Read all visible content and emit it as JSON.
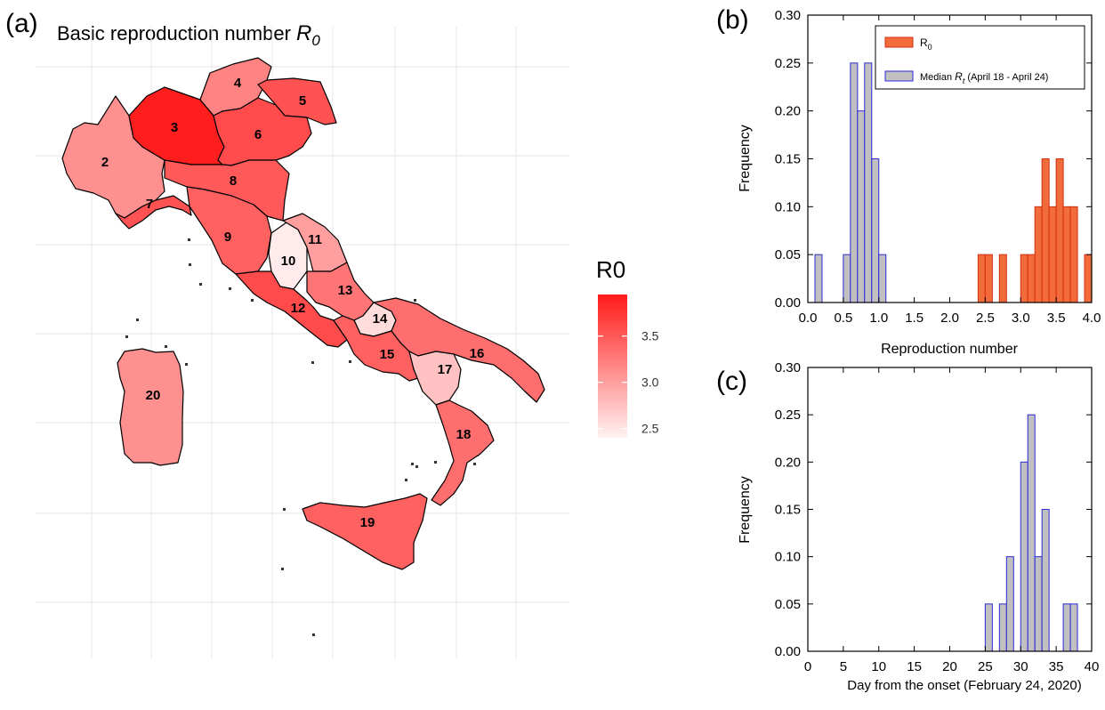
{
  "panel_a": {
    "label": "(a)",
    "title_text": "Basic reproduction number ",
    "title_symbol": "R",
    "title_sub": "0"
  },
  "panel_b": {
    "label": "(b)"
  },
  "panel_c": {
    "label": "(c)"
  },
  "colors": {
    "r0_fill": "#f26b3a",
    "r0_edge": "#d32f12",
    "rt_fill": "#c0c0c0",
    "rt_edge": "#2a2ad8",
    "map_high": "#ff1a1a",
    "map_low": "#fff2f2",
    "region_stroke": "#000000",
    "grid": "#ebebeb"
  },
  "chart_data": [
    {
      "id": "map",
      "type": "heatmap",
      "title": "Basic reproduction number R0",
      "legend": {
        "title": "R0",
        "ticks": [
          "3.5",
          "3.0",
          "2.5"
        ],
        "min": 2.4,
        "max": 3.95
      },
      "regions": [
        {
          "id": "2",
          "r0": 3.1
        },
        {
          "id": "3",
          "r0": 3.92
        },
        {
          "id": "4",
          "r0": 3.2
        },
        {
          "id": "5",
          "r0": 3.55
        },
        {
          "id": "6",
          "r0": 3.6
        },
        {
          "id": "7",
          "r0": 3.55
        },
        {
          "id": "8",
          "r0": 3.5
        },
        {
          "id": "9",
          "r0": 3.45
        },
        {
          "id": "10",
          "r0": 2.45
        },
        {
          "id": "11",
          "r0": 3.0
        },
        {
          "id": "12",
          "r0": 3.6
        },
        {
          "id": "13",
          "r0": 3.3
        },
        {
          "id": "14",
          "r0": 2.55
        },
        {
          "id": "15",
          "r0": 3.45
        },
        {
          "id": "16",
          "r0": 3.35
        },
        {
          "id": "17",
          "r0": 2.75
        },
        {
          "id": "18",
          "r0": 3.35
        },
        {
          "id": "19",
          "r0": 3.45
        },
        {
          "id": "20",
          "r0": 3.1
        }
      ]
    },
    {
      "id": "hist_b",
      "type": "bar",
      "xlabel": "Reproduction number",
      "ylabel": "Frequency",
      "xlim": [
        0.0,
        4.0
      ],
      "ylim": [
        0.0,
        0.3
      ],
      "xticks": [
        "0.0",
        "0.5",
        "1.0",
        "1.5",
        "2.0",
        "2.5",
        "3.0",
        "3.5",
        "4.0"
      ],
      "yticks": [
        "0.00",
        "0.05",
        "0.10",
        "0.15",
        "0.20",
        "0.25",
        "0.30"
      ],
      "bin_width": 0.1,
      "legend": {
        "position": "top-right",
        "r0_label": "R",
        "r0_sub": "0",
        "rt_label_pre": "Median ",
        "rt_symbol": "R",
        "rt_sub": "t",
        "rt_label_post": " (April 18 - April 24)"
      },
      "series": [
        {
          "name": "Median Rt (April 18 - April 24)",
          "color": "rt",
          "bins": [
            [
              0.1,
              0.05
            ],
            [
              0.5,
              0.05
            ],
            [
              0.6,
              0.25
            ],
            [
              0.7,
              0.2
            ],
            [
              0.8,
              0.25
            ],
            [
              0.9,
              0.15
            ],
            [
              1.0,
              0.05
            ]
          ]
        },
        {
          "name": "R0",
          "color": "r0",
          "bins": [
            [
              2.4,
              0.05
            ],
            [
              2.5,
              0.05
            ],
            [
              2.7,
              0.05
            ],
            [
              3.0,
              0.05
            ],
            [
              3.1,
              0.05
            ],
            [
              3.2,
              0.1
            ],
            [
              3.3,
              0.15
            ],
            [
              3.4,
              0.1
            ],
            [
              3.5,
              0.15
            ],
            [
              3.6,
              0.1
            ],
            [
              3.7,
              0.1
            ],
            [
              3.9,
              0.05
            ]
          ]
        }
      ]
    },
    {
      "id": "hist_c",
      "type": "bar",
      "xlabel": "Day from the onset (February 24, 2020)",
      "ylabel": "Frequency",
      "xlim": [
        0,
        40
      ],
      "ylim": [
        0.0,
        0.3
      ],
      "xticks": [
        "0",
        "5",
        "10",
        "15",
        "20",
        "25",
        "30",
        "35",
        "40"
      ],
      "yticks": [
        "0.00",
        "0.05",
        "0.10",
        "0.15",
        "0.20",
        "0.25",
        "0.30"
      ],
      "bin_width": 1,
      "series": [
        {
          "name": "",
          "color": "rt",
          "bins": [
            [
              25,
              0.05
            ],
            [
              27,
              0.05
            ],
            [
              28,
              0.1
            ],
            [
              30,
              0.2
            ],
            [
              31,
              0.25
            ],
            [
              32,
              0.1
            ],
            [
              33,
              0.15
            ],
            [
              36,
              0.05
            ],
            [
              37,
              0.05
            ]
          ]
        }
      ]
    }
  ]
}
